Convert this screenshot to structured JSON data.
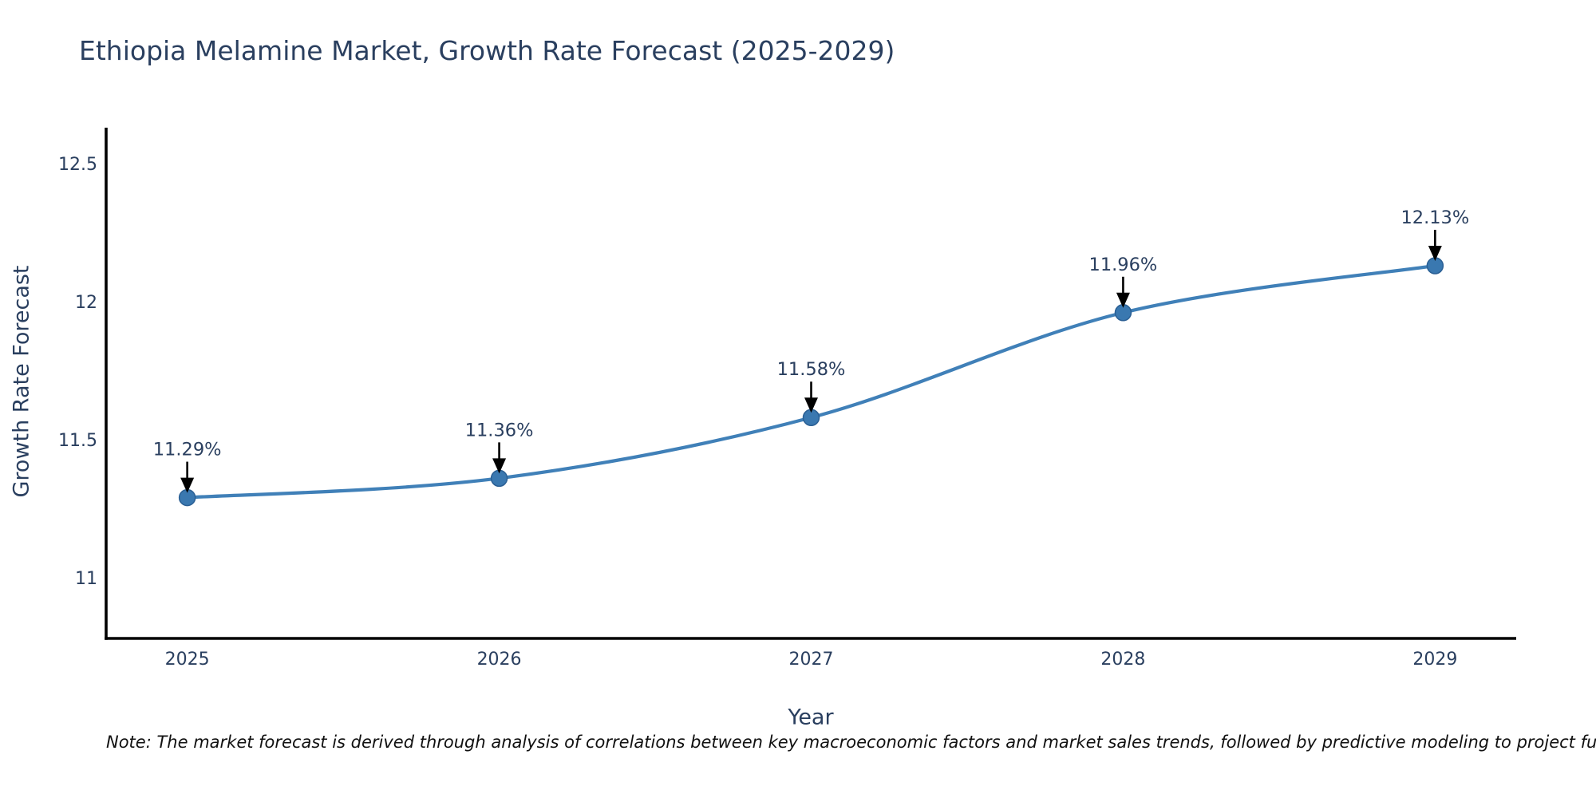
{
  "figure": {
    "note": "Note: The market forecast is derived through analysis of correlations between key macroeconomic factors and market sales trends, followed by predictive modeling to project future sal"
  },
  "chart_data": {
    "type": "line",
    "title": "Ethiopia Melamine Market, Growth Rate Forecast (2025-2029)",
    "xlabel": "Year",
    "ylabel": "Growth Rate Forecast",
    "x": [
      2025,
      2026,
      2027,
      2028,
      2029
    ],
    "series": [
      {
        "name": "Growth Rate Forecast",
        "values": [
          11.29,
          11.36,
          11.58,
          11.96,
          12.13
        ]
      }
    ],
    "point_labels": [
      "11.29%",
      "11.36%",
      "11.58%",
      "11.96%",
      "12.13%"
    ],
    "xticks": {
      "values": [
        2025,
        2026,
        2027,
        2028,
        2029
      ],
      "labels": [
        "2025",
        "2026",
        "2027",
        "2028",
        "2029"
      ]
    },
    "yticks": {
      "values": [
        11,
        11.5,
        12,
        12.5
      ],
      "labels": [
        "11",
        "11.5",
        "12",
        "12.5"
      ]
    },
    "xlim": [
      2024.74,
      2029.26
    ],
    "ylim": [
      10.78,
      12.63
    ],
    "grid": false,
    "legend": "none",
    "line_shape": "spline",
    "annotation_arrows": true,
    "colors": {
      "line": "#4080b8",
      "marker": "#3a78b0",
      "marker_edge": "#2a5f94",
      "text": "#2a3f5f",
      "axis": "#000000",
      "arrow": "#000000",
      "note": "#111111"
    }
  }
}
